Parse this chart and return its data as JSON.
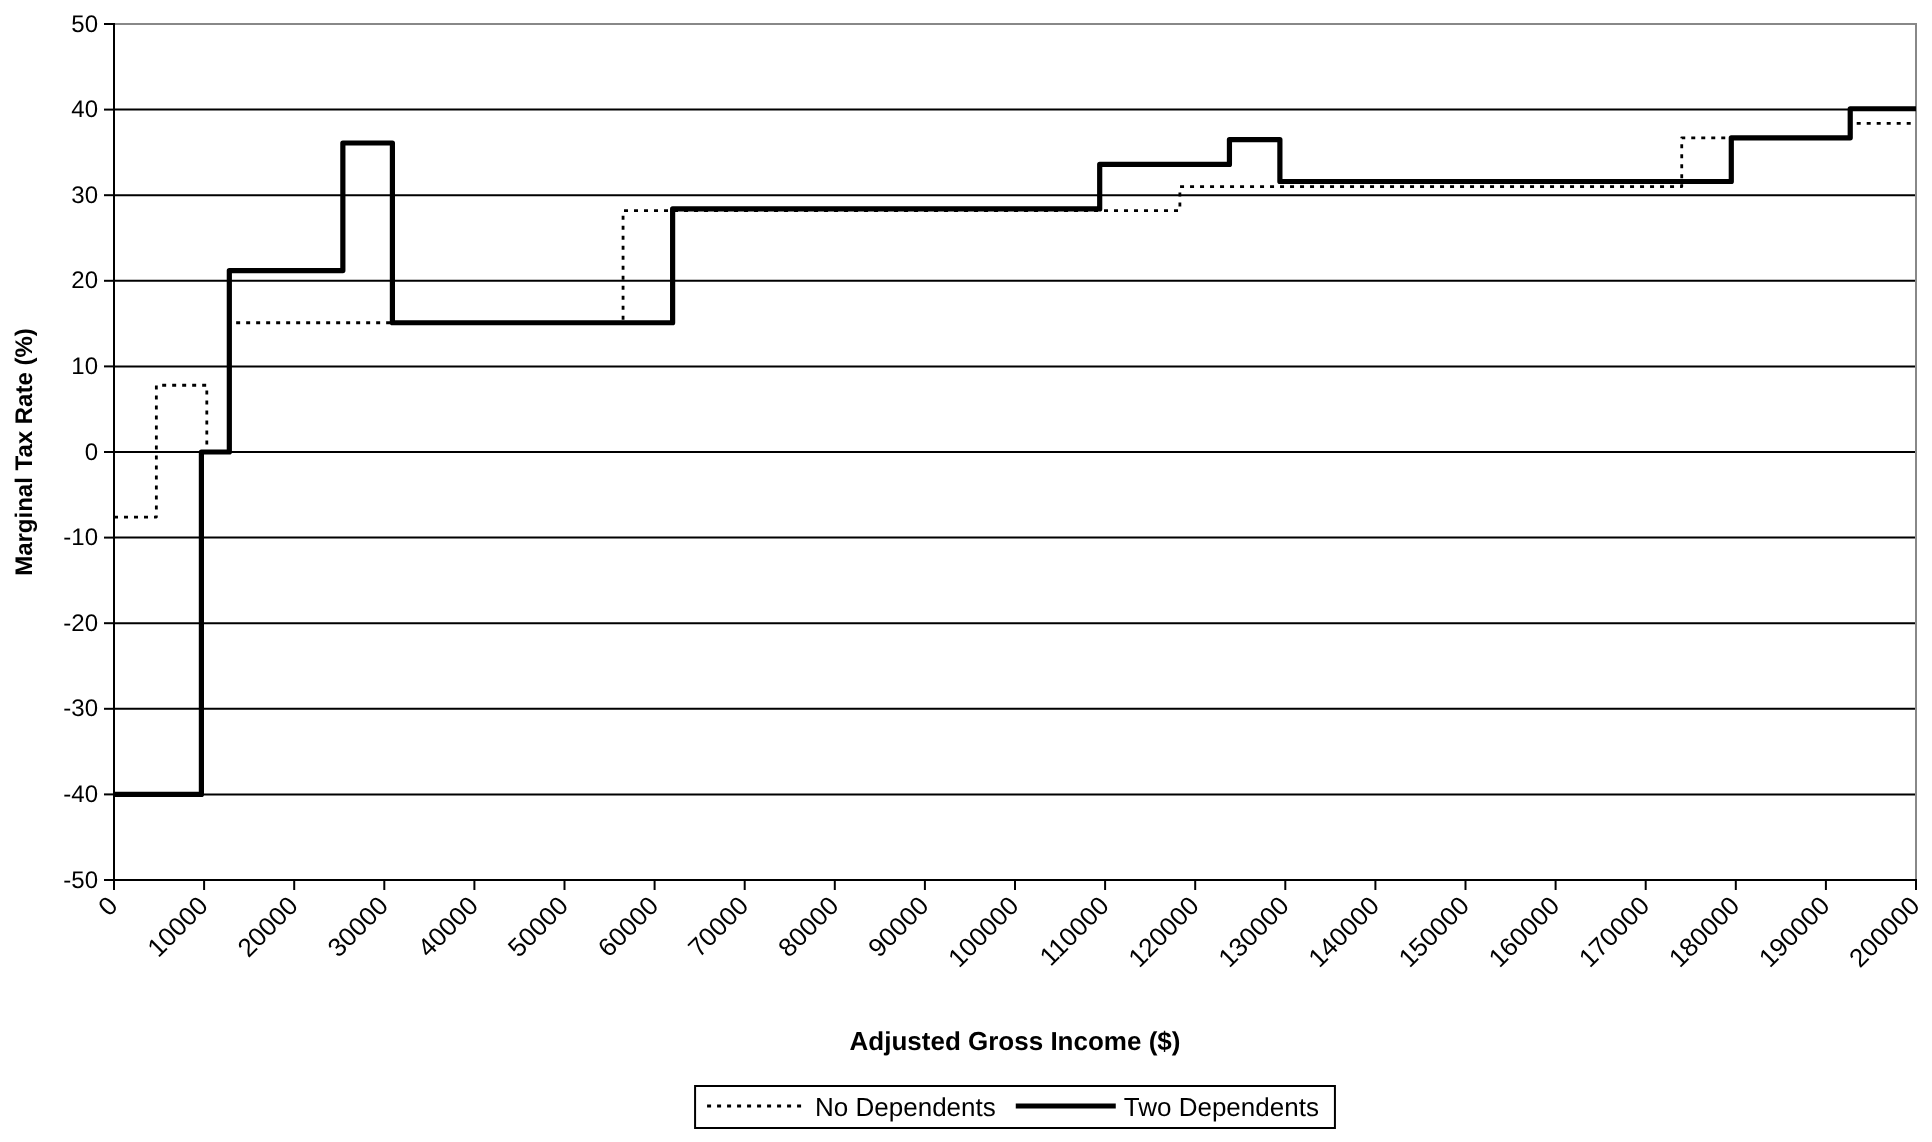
{
  "chart_data": {
    "type": "step",
    "xlabel": "Adjusted Gross Income ($)",
    "ylabel": "Marginal Tax Rate (%)",
    "xlim": [
      0,
      200000
    ],
    "xticks": [
      0,
      10000,
      20000,
      30000,
      40000,
      50000,
      60000,
      70000,
      80000,
      90000,
      100000,
      110000,
      120000,
      130000,
      140000,
      150000,
      160000,
      170000,
      180000,
      190000,
      200000
    ],
    "ylim": [
      -50,
      50
    ],
    "yticks": [
      -50,
      -40,
      -30,
      -20,
      -10,
      0,
      10,
      20,
      30,
      40,
      50
    ],
    "grid": "y",
    "legend": "bottom",
    "series": [
      {
        "name": "No Dependents",
        "color": "#000000",
        "line_style": "dotted",
        "x": [
          0,
          4700,
          10300,
          12800,
          56500,
          118300,
          174000,
          192700,
          200000
        ],
        "values": [
          -7.6,
          7.8,
          0,
          15.1,
          28.2,
          31.0,
          36.7,
          38.4,
          38.4
        ]
      },
      {
        "name": "Two Dependents",
        "color": "#000000",
        "line_style": "solid",
        "x": [
          0,
          9700,
          12800,
          25400,
          30900,
          62000,
          109400,
          123800,
          129400,
          179500,
          192700,
          200000
        ],
        "values": [
          -40,
          0,
          21.2,
          36.1,
          15.1,
          28.4,
          33.6,
          36.5,
          31.6,
          36.7,
          40.1,
          40.1
        ]
      }
    ]
  }
}
